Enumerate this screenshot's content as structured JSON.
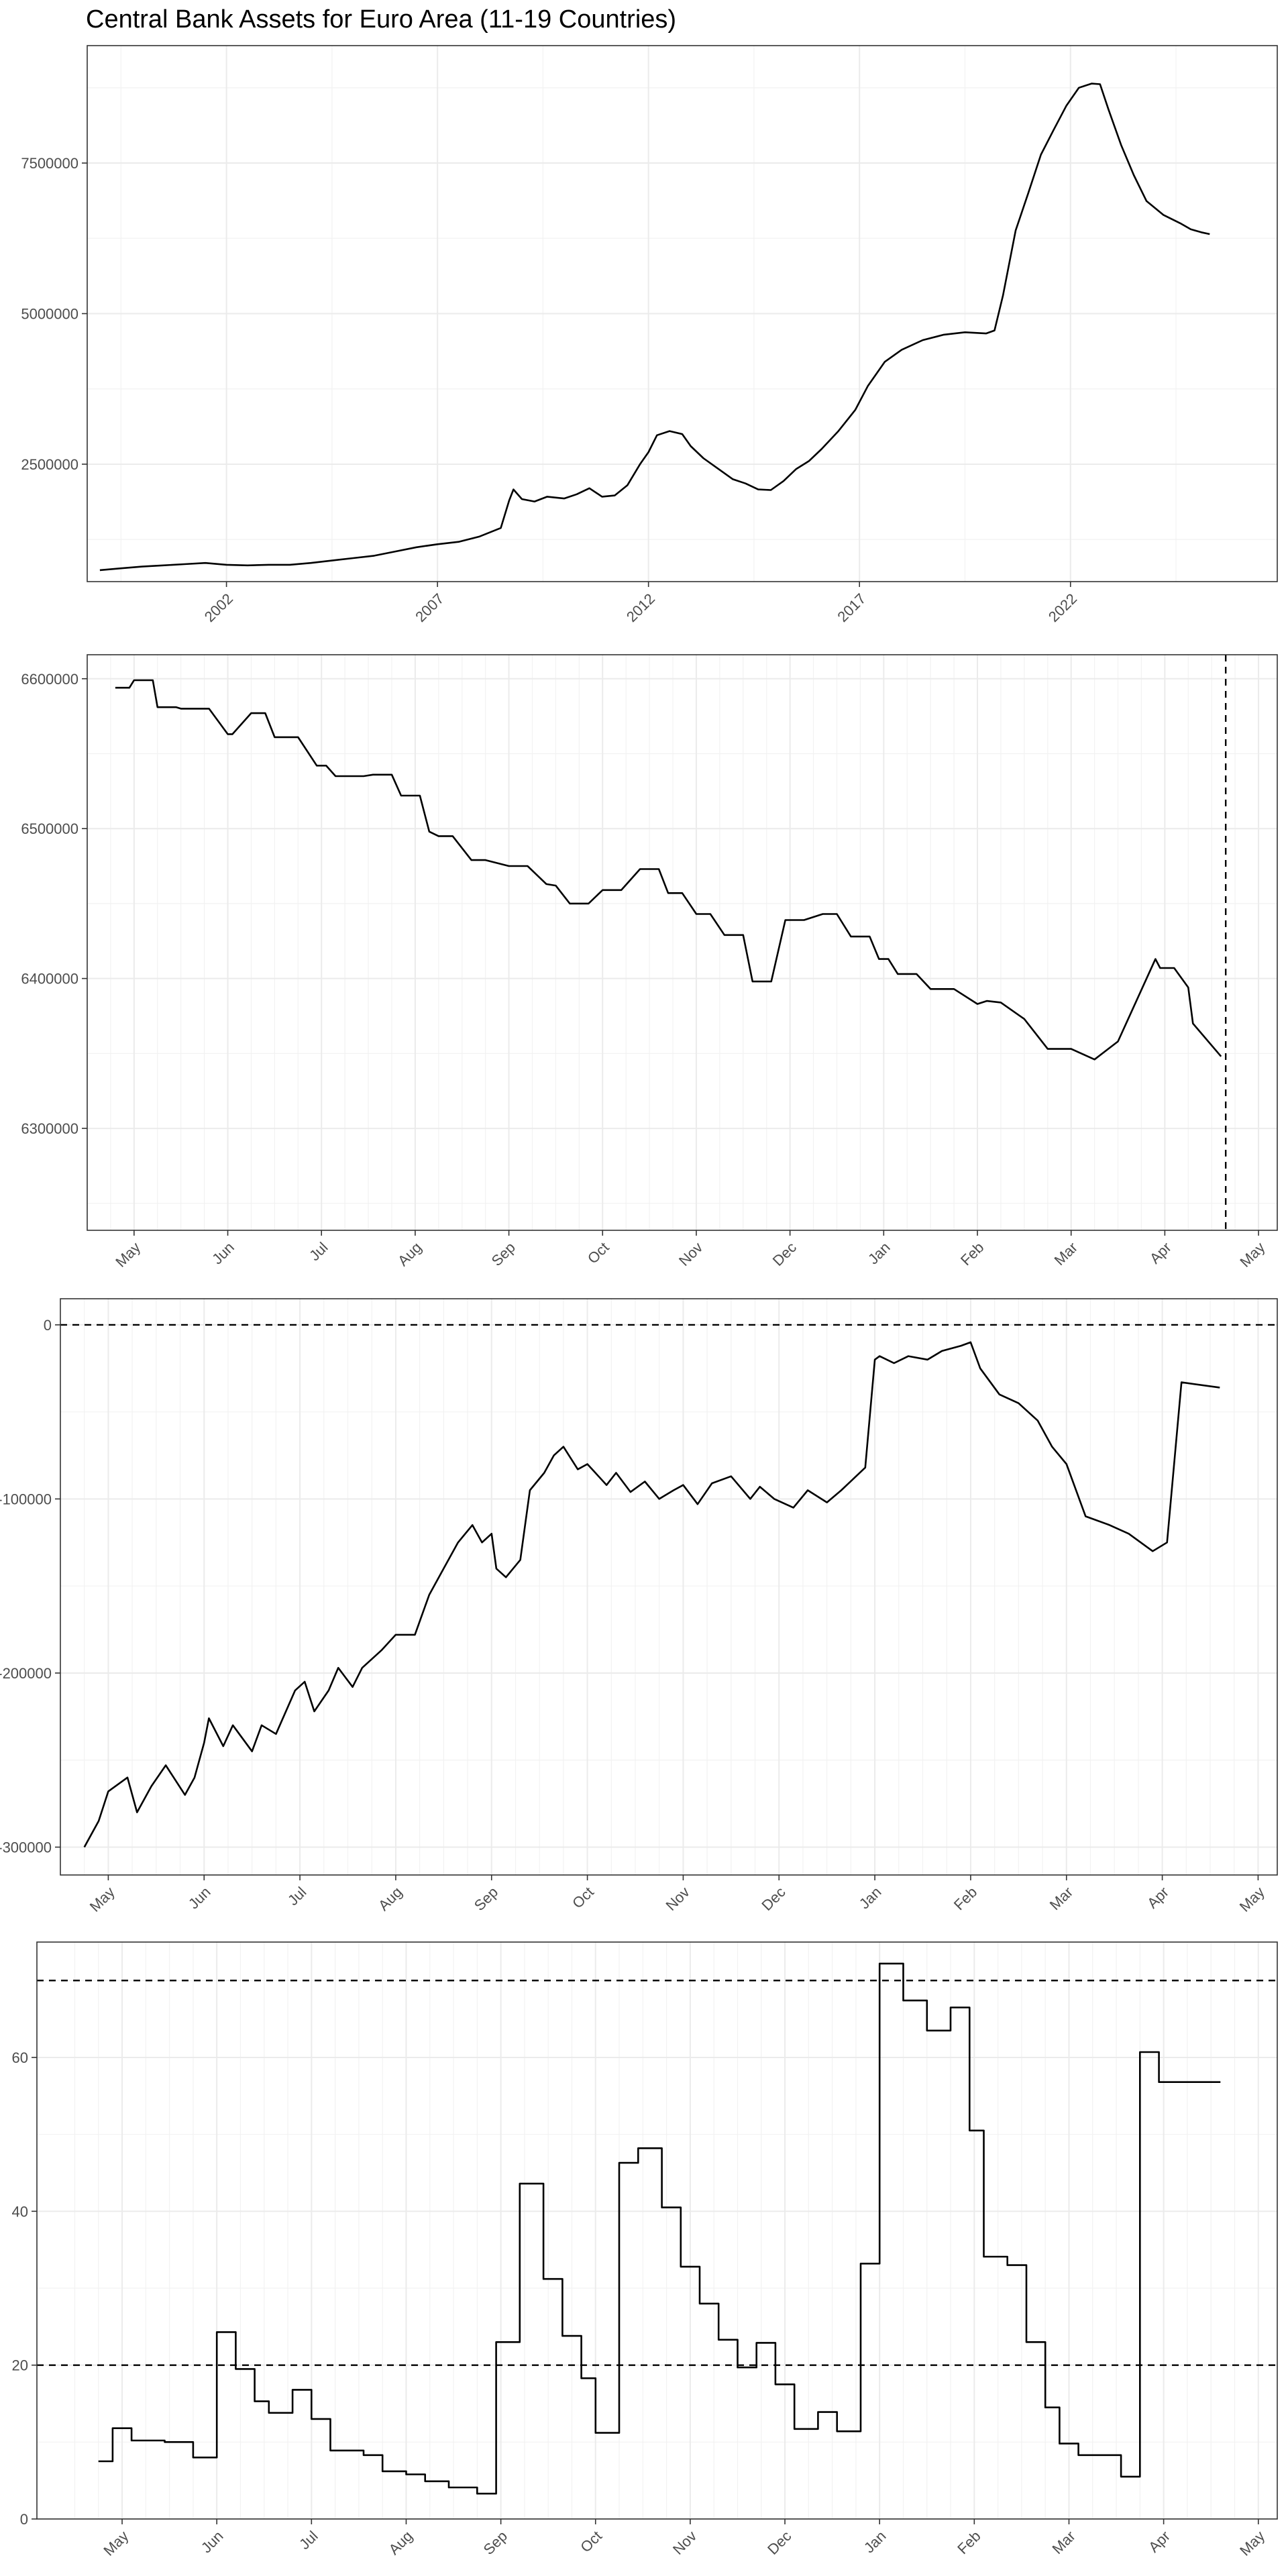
{
  "figure": {
    "title": "Central Bank Assets for Euro Area (11-19 Countries)"
  },
  "chart_data": [
    {
      "type": "line",
      "title": "Central Bank Assets for Euro Area (11-19 Countries)",
      "xlabel": "",
      "ylabel": "",
      "grid": true,
      "x_ticks": [
        "2002",
        "2007",
        "2012",
        "2017",
        "2022"
      ],
      "x_tick_values": [
        2002,
        2007,
        2012,
        2017,
        2022
      ],
      "y_ticks": [
        "2500000",
        "5000000",
        "7500000"
      ],
      "y_tick_values": [
        2500000,
        5000000,
        7500000
      ],
      "xlim": [
        1998.7,
        2026.9
      ],
      "ylim": [
        550000,
        9450000
      ],
      "series": [
        {
          "x": [
            1999.0,
            1999.5,
            2000.0,
            2000.5,
            2001.0,
            2001.5,
            2002.0,
            2002.5,
            2003.0,
            2003.5,
            2004.0,
            2004.5,
            2005.0,
            2005.5,
            2006.0,
            2006.5,
            2007.0,
            2007.5,
            2008.0,
            2008.5,
            2008.7,
            2008.8,
            2009.0,
            2009.3,
            2009.6,
            2010.0,
            2010.3,
            2010.6,
            2010.9,
            2011.2,
            2011.5,
            2011.8,
            2012.0,
            2012.2,
            2012.5,
            2012.8,
            2013.0,
            2013.3,
            2013.6,
            2014.0,
            2014.3,
            2014.6,
            2014.9,
            2015.2,
            2015.5,
            2015.8,
            2016.1,
            2016.5,
            2016.9,
            2017.2,
            2017.6,
            2018.0,
            2018.5,
            2019.0,
            2019.5,
            2020.0,
            2020.2,
            2020.4,
            2020.7,
            2021.0,
            2021.3,
            2021.6,
            2021.9,
            2022.2,
            2022.5,
            2022.7,
            2022.9,
            2023.2,
            2023.5,
            2023.8,
            2024.2,
            2024.6,
            2024.85,
            2025.1,
            2025.3
          ],
          "y": [
            740000,
            770000,
            800000,
            820000,
            840000,
            860000,
            830000,
            820000,
            830000,
            830000,
            860000,
            900000,
            940000,
            980000,
            1050000,
            1120000,
            1170000,
            1210000,
            1300000,
            1440000,
            1900000,
            2080000,
            1920000,
            1880000,
            1960000,
            1930000,
            2000000,
            2100000,
            1960000,
            1980000,
            2150000,
            2500000,
            2700000,
            2980000,
            3050000,
            3000000,
            2800000,
            2600000,
            2450000,
            2250000,
            2180000,
            2080000,
            2070000,
            2220000,
            2420000,
            2550000,
            2750000,
            3050000,
            3400000,
            3800000,
            4200000,
            4400000,
            4560000,
            4650000,
            4690000,
            4670000,
            4720000,
            5300000,
            6380000,
            7000000,
            7640000,
            8050000,
            8450000,
            8750000,
            8820000,
            8810000,
            8390000,
            7800000,
            7300000,
            6870000,
            6640000,
            6500000,
            6400000,
            6350000,
            6320000
          ]
        }
      ]
    },
    {
      "type": "line",
      "title": "",
      "xlabel": "",
      "ylabel": "",
      "grid": true,
      "x_ticks": [
        "May",
        "Jun",
        "Jul",
        "Aug",
        "Sep",
        "Oct",
        "Nov",
        "Dec",
        "Jan",
        "Feb",
        "Mar",
        "Apr",
        "May"
      ],
      "y_ticks": [
        "6300000",
        "6400000",
        "6500000",
        "6600000"
      ],
      "y_tick_values": [
        6300000,
        6400000,
        6500000,
        6600000
      ],
      "xlim": [
        -0.5,
        12.2
      ],
      "ylim": [
        6232000,
        6616000
      ],
      "reference_lines": [
        {
          "axis": "x",
          "value": 11.65,
          "style": "dashed"
        }
      ],
      "series": [
        {
          "x": [
            -0.2,
            -0.05,
            0.0,
            0.2,
            0.25,
            0.45,
            0.5,
            0.8,
            1.0,
            1.05,
            1.25,
            1.4,
            1.5,
            1.75,
            1.95,
            2.05,
            2.15,
            2.45,
            2.55,
            2.75,
            2.85,
            3.05,
            3.15,
            3.25,
            3.4,
            3.6,
            3.75,
            4.0,
            4.2,
            4.4,
            4.5,
            4.65,
            4.85,
            5.0,
            5.2,
            5.4,
            5.6,
            5.7,
            5.85,
            6.0,
            6.15,
            6.3,
            6.5,
            6.6,
            6.8,
            6.95,
            7.15,
            7.35,
            7.5,
            7.65,
            7.85,
            7.95,
            8.05,
            8.15,
            8.35,
            8.5,
            8.75,
            9.0,
            9.1,
            9.25,
            9.5,
            9.75,
            10.0,
            10.25,
            10.5,
            10.9,
            10.95,
            11.1,
            11.25,
            11.3,
            11.6
          ],
          "y": [
            6594000,
            6594000,
            6599000,
            6599000,
            6581000,
            6581000,
            6580000,
            6580000,
            6563000,
            6563000,
            6577000,
            6577000,
            6561000,
            6561000,
            6542000,
            6542000,
            6535000,
            6535000,
            6536000,
            6536000,
            6522000,
            6522000,
            6498000,
            6495000,
            6495000,
            6479000,
            6479000,
            6475000,
            6475000,
            6463000,
            6462000,
            6450000,
            6450000,
            6459000,
            6459000,
            6473000,
            6473000,
            6457000,
            6457000,
            6443000,
            6443000,
            6429000,
            6429000,
            6398000,
            6398000,
            6439000,
            6439000,
            6443000,
            6443000,
            6428000,
            6428000,
            6413000,
            6413000,
            6403000,
            6403000,
            6393000,
            6393000,
            6383000,
            6385000,
            6384000,
            6373000,
            6353000,
            6353000,
            6346000,
            6358000,
            6413000,
            6407000,
            6407000,
            6394000,
            6370000,
            6348000
          ]
        }
      ]
    },
    {
      "type": "line",
      "title": "",
      "xlabel": "",
      "ylabel": "",
      "grid": true,
      "x_ticks": [
        "May",
        "Jun",
        "Jul",
        "Aug",
        "Sep",
        "Oct",
        "Nov",
        "Dec",
        "Jan",
        "Feb",
        "Mar",
        "Apr",
        "May"
      ],
      "y_ticks": [
        "-300000",
        "-200000",
        "-100000",
        "0"
      ],
      "y_tick_values": [
        -300000,
        -200000,
        -100000,
        0
      ],
      "xlim": [
        -0.5,
        12.2
      ],
      "ylim": [
        -316000,
        15000
      ],
      "reference_lines": [
        {
          "axis": "y",
          "value": 0,
          "style": "dashed"
        }
      ],
      "series": [
        {
          "x": [
            -0.25,
            -0.1,
            0.0,
            0.2,
            0.3,
            0.45,
            0.6,
            0.8,
            0.9,
            1.0,
            1.05,
            1.2,
            1.3,
            1.5,
            1.6,
            1.75,
            1.95,
            2.05,
            2.15,
            2.3,
            2.4,
            2.55,
            2.65,
            2.85,
            3.0,
            3.2,
            3.35,
            3.5,
            3.65,
            3.8,
            3.9,
            4.0,
            4.05,
            4.15,
            4.3,
            4.4,
            4.55,
            4.65,
            4.75,
            4.9,
            5.0,
            5.2,
            5.3,
            5.45,
            5.6,
            5.75,
            5.9,
            6.0,
            6.15,
            6.3,
            6.5,
            6.7,
            6.8,
            6.95,
            7.15,
            7.3,
            7.5,
            7.65,
            7.9,
            8.0,
            8.05,
            8.2,
            8.35,
            8.55,
            8.7,
            8.9,
            9.0,
            9.1,
            9.3,
            9.5,
            9.7,
            9.85,
            10.0,
            10.2,
            10.45,
            10.65,
            10.9,
            11.05,
            11.2,
            11.6
          ],
          "y": [
            -300000,
            -285000,
            -268000,
            -260000,
            -280000,
            -265000,
            -253000,
            -270000,
            -260000,
            -240000,
            -226000,
            -242000,
            -230000,
            -245000,
            -230000,
            -235000,
            -210000,
            -205000,
            -222000,
            -210000,
            -197000,
            -208000,
            -197000,
            -187000,
            -178000,
            -178000,
            -155000,
            -140000,
            -125000,
            -115000,
            -125000,
            -120000,
            -140000,
            -145000,
            -135000,
            -95000,
            -85000,
            -75000,
            -70000,
            -83000,
            -80000,
            -92000,
            -85000,
            -96000,
            -90000,
            -100000,
            -95000,
            -92000,
            -103000,
            -91000,
            -87000,
            -100000,
            -93000,
            -100000,
            -105000,
            -95000,
            -102000,
            -95000,
            -82000,
            -20000,
            -18000,
            -22000,
            -18000,
            -20000,
            -15000,
            -12000,
            -10000,
            -25000,
            -40000,
            -45000,
            -55000,
            -70000,
            -80000,
            -110000,
            -115000,
            -120000,
            -130000,
            -125000,
            -33000,
            -36000
          ]
        }
      ]
    },
    {
      "type": "line",
      "title": "",
      "xlabel": "",
      "ylabel": "",
      "grid": true,
      "x_ticks": [
        "May",
        "Jun",
        "Jul",
        "Aug",
        "Sep",
        "Oct",
        "Nov",
        "Dec",
        "Jan",
        "Feb",
        "Mar",
        "Apr",
        "May"
      ],
      "y_ticks": [
        "0",
        "20",
        "40",
        "60"
      ],
      "y_tick_values": [
        0,
        20,
        40,
        60
      ],
      "xlim": [
        -0.9,
        12.2
      ],
      "ylim": [
        0,
        75
      ],
      "reference_lines": [
        {
          "axis": "y",
          "value": 20,
          "style": "dashed"
        },
        {
          "axis": "y",
          "value": 70,
          "style": "dashed"
        }
      ],
      "series": [
        {
          "x": [
            -0.25,
            -0.1,
            -0.1,
            0.1,
            0.1,
            0.45,
            0.45,
            0.75,
            0.75,
            1.0,
            1.0,
            1.2,
            1.2,
            1.4,
            1.4,
            1.55,
            1.55,
            1.8,
            1.8,
            2.0,
            2.0,
            2.2,
            2.2,
            2.55,
            2.55,
            2.75,
            2.75,
            3.0,
            3.0,
            3.2,
            3.2,
            3.45,
            3.45,
            3.75,
            3.75,
            3.95,
            3.95,
            4.2,
            4.2,
            4.45,
            4.45,
            4.65,
            4.65,
            4.85,
            4.85,
            5.0,
            5.0,
            5.25,
            5.25,
            5.45,
            5.45,
            5.7,
            5.7,
            5.9,
            5.9,
            6.1,
            6.1,
            6.3,
            6.3,
            6.5,
            6.5,
            6.7,
            6.7,
            6.9,
            6.9,
            7.1,
            7.1,
            7.35,
            7.35,
            7.55,
            7.55,
            7.8,
            7.8,
            8.0,
            8.0,
            8.25,
            8.25,
            8.5,
            8.5,
            8.75,
            8.75,
            8.95,
            8.95,
            9.1,
            9.1,
            9.35,
            9.35,
            9.55,
            9.55,
            9.75,
            9.75,
            9.9,
            9.9,
            10.1,
            10.1,
            10.55,
            10.55,
            10.75,
            10.75,
            10.95,
            10.95,
            11.6
          ],
          "y": [
            7.5,
            7.5,
            11.8,
            11.8,
            10.2,
            10.2,
            10.0,
            10.0,
            8.0,
            8.0,
            24.3,
            24.3,
            19.5,
            19.5,
            15.3,
            15.3,
            13.8,
            13.8,
            16.8,
            16.8,
            13.0,
            13.0,
            8.9,
            8.9,
            8.3,
            8.3,
            6.2,
            6.2,
            5.8,
            5.8,
            4.9,
            4.9,
            4.1,
            4.1,
            3.3,
            3.3,
            23.0,
            23.0,
            43.6,
            43.6,
            31.2,
            31.2,
            23.8,
            23.8,
            18.3,
            18.3,
            11.2,
            11.2,
            46.3,
            46.3,
            48.2,
            48.2,
            40.5,
            40.5,
            32.8,
            32.8,
            28.0,
            28.0,
            23.3,
            23.3,
            19.7,
            19.7,
            22.9,
            22.9,
            17.5,
            17.5,
            11.7,
            11.7,
            13.9,
            13.9,
            11.4,
            11.4,
            33.2,
            33.2,
            72.2,
            72.2,
            67.4,
            67.4,
            63.5,
            63.5,
            66.5,
            66.5,
            50.5,
            50.5,
            34.1,
            34.1,
            33.0,
            33.0,
            23.0,
            23.0,
            14.5,
            14.5,
            9.8,
            9.8,
            8.3,
            8.3,
            5.5,
            5.5,
            60.7,
            60.7,
            56.8,
            56.8
          ]
        }
      ]
    }
  ]
}
